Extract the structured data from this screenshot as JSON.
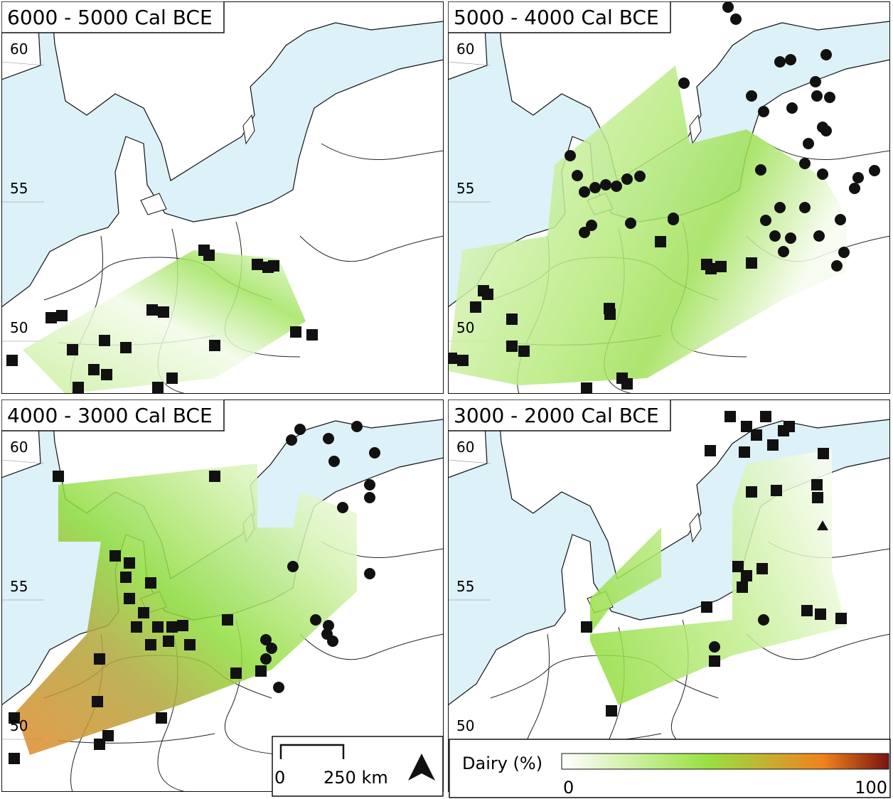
{
  "panels": [
    {
      "title": "6000 - 5000 Cal BCE",
      "latitudes": [
        60,
        55,
        50
      ]
    },
    {
      "title": "5000 - 4000 Cal BCE",
      "latitudes": [
        60,
        55,
        50
      ]
    },
    {
      "title": "4000 - 3000 Cal BCE",
      "latitudes": [
        60,
        55,
        50
      ]
    },
    {
      "title": "3000 - 2000 Cal BCE",
      "latitudes": [
        60,
        55,
        50
      ]
    }
  ],
  "scale_bar": {
    "start": 0,
    "end": "250 km"
  },
  "legend": {
    "title": "Dairy (%)",
    "min": 0,
    "max": 100
  }
}
